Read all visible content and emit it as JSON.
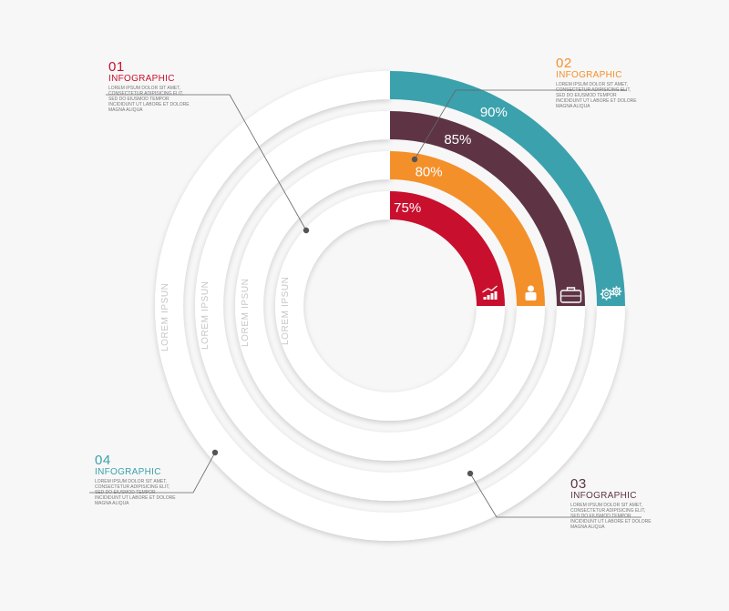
{
  "segments": [
    {
      "value": "75%",
      "color": "#c8102e",
      "icon": "chart-icon"
    },
    {
      "value": "80%",
      "color": "#f4902a",
      "icon": "person-icon"
    },
    {
      "value": "85%",
      "color": "#5e3444",
      "icon": "briefcase-icon"
    },
    {
      "value": "90%",
      "color": "#3ba1ad",
      "icon": "gears-icon"
    }
  ],
  "ring_label": "LOREM IPSUN",
  "callouts": [
    {
      "num": "01",
      "title": "INFOGRAPHIC",
      "color": "#c8102e",
      "body": "LOREM IPSUM DOLOR SIT AMET, CONSECTETUR ADIPISICING ELIT, SED DO EIUSMOD TEMPOR INCIDIDUNT UT LABORE ET DOLORE MAGNA ALIQUA"
    },
    {
      "num": "02",
      "title": "INFOGRAPHIC",
      "color": "#f4902a",
      "body": "LOREM IPSUM DOLOR SIT AMET, CONSECTETUR ADIPISICING ELIT, SED DO EIUSMOD TEMPOR INCIDIDUNT UT LABORE ET DOLORE MAGNA ALIQUA"
    },
    {
      "num": "03",
      "title": "INFOGRAPHIC",
      "color": "#5e3444",
      "body": "LOREM IPSUM DOLOR SIT AMET, CONSECTETUR ADIPISICING ELIT, SED DO EIUSMOD TEMPOR INCIDIDUNT UT LABORE ET DOLORE MAGNA ALIQUA"
    },
    {
      "num": "04",
      "title": "INFOGRAPHIC",
      "color": "#3ba1ad",
      "body": "LOREM IPSUM DOLOR SIT AMET, CONSECTETUR ADIPISICING ELIT, SED DO EIUSMOD TEMPOR INCIDIDUNT UT LABORE ET DOLORE MAGNA ALIQUA"
    }
  ]
}
